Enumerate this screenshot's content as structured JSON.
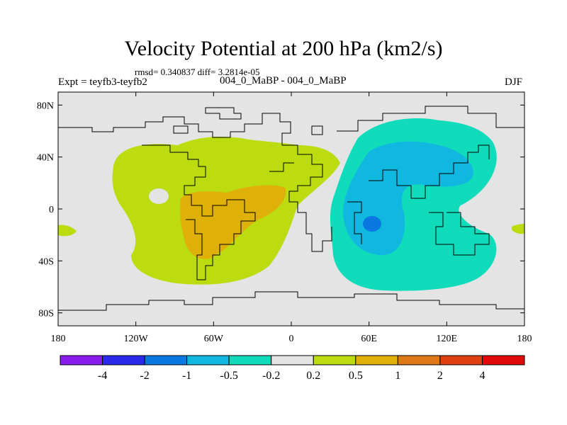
{
  "title": "Velocity Potential at 200 hPa (km2/s)",
  "stats": "rmsd= 0.340837 diff= 3.2814e-05",
  "expt": "Expt = teyfb3-teyfb2",
  "center_label": "004_0_MaBP - 004_0_MaBP",
  "season": "DJF",
  "lat_labels": [
    "80N",
    "40N",
    "0",
    "40S",
    "80S"
  ],
  "lat_values": [
    80,
    40,
    0,
    -40,
    -80
  ],
  "lon_labels": [
    "180",
    "120W",
    "60W",
    "0",
    "60E",
    "120E",
    "180"
  ],
  "lon_values": [
    -180,
    -120,
    -60,
    0,
    60,
    120,
    180
  ],
  "colorbar": {
    "levels": [
      "-4",
      "-2",
      "-1",
      "-0.5",
      "-0.2",
      "0.2",
      "0.5",
      "1",
      "2",
      "4"
    ],
    "colors": [
      "#8a1cf0",
      "#2a2ae8",
      "#0a78e0",
      "#10b8e0",
      "#10dcbc",
      "#e4e4e4",
      "#bcdc10",
      "#e0b00a",
      "#e07818",
      "#e04010",
      "#e00a0a"
    ]
  },
  "map_colors": {
    "background": "#e4e4e4",
    "positive_weak": "#bcdc10",
    "positive_mid": "#e0b00a",
    "negative_weak": "#10dcbc",
    "negative_mid": "#10b8e0",
    "negative_strong": "#0a78e0"
  }
}
